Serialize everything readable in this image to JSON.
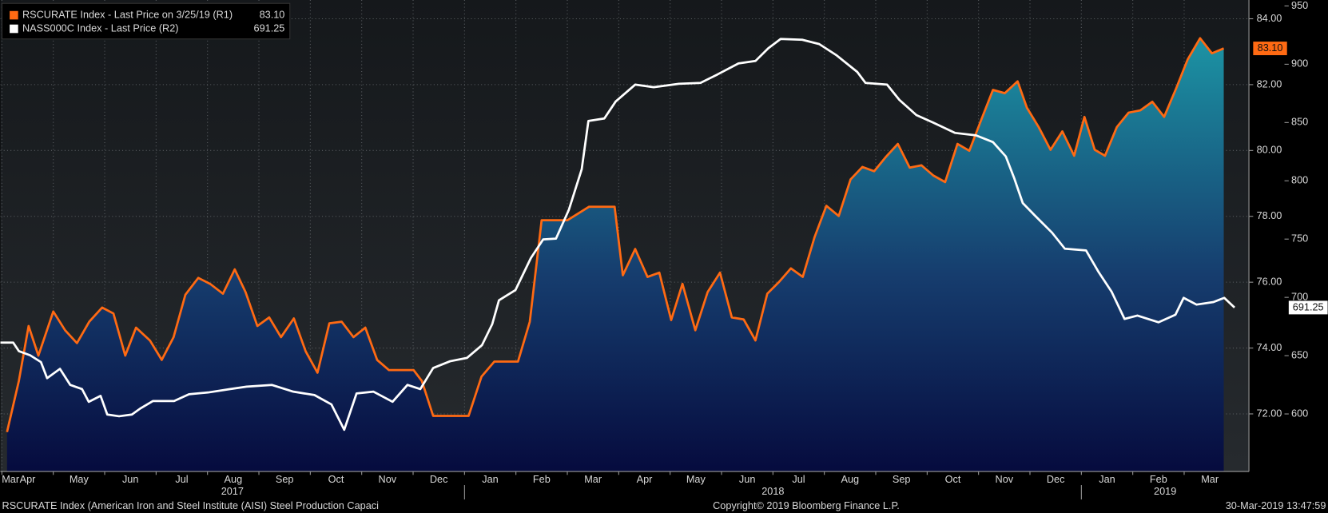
{
  "chart_data": {
    "type": "line",
    "xlim": [
      2.47,
      26.76
    ],
    "xticks": [
      {
        "value": 1.5,
        "label": "Mar"
      },
      {
        "value": 2.5,
        "label": "Apr"
      },
      {
        "value": 3.5,
        "label": "May"
      },
      {
        "value": 4.5,
        "label": "Jun"
      },
      {
        "value": 5.5,
        "label": "Jul"
      },
      {
        "value": 6.5,
        "label": "Aug"
      },
      {
        "value": 7.5,
        "label": "Sep"
      },
      {
        "value": 8.5,
        "label": "Oct"
      },
      {
        "value": 9.5,
        "label": "Nov"
      },
      {
        "value": 10.5,
        "label": "Dec"
      },
      {
        "value": 11.5,
        "label": "Jan"
      },
      {
        "value": 12.5,
        "label": "Feb"
      },
      {
        "value": 13.5,
        "label": "Mar"
      },
      {
        "value": 14.5,
        "label": "Apr"
      },
      {
        "value": 15.5,
        "label": "May"
      },
      {
        "value": 16.5,
        "label": "Jun"
      },
      {
        "value": 17.5,
        "label": "Jul"
      },
      {
        "value": 18.5,
        "label": "Aug"
      },
      {
        "value": 19.5,
        "label": "Sep"
      },
      {
        "value": 20.5,
        "label": "Oct"
      },
      {
        "value": 21.5,
        "label": "Nov"
      },
      {
        "value": 22.5,
        "label": "Dec"
      },
      {
        "value": 23.5,
        "label": "Jan"
      },
      {
        "value": 24.5,
        "label": "Feb"
      },
      {
        "value": 25.5,
        "label": "Mar"
      }
    ],
    "year_ticks": [
      {
        "value": 1.5,
        "label": "2017"
      },
      {
        "value": 11.5,
        "label": "2018"
      },
      {
        "value": 23.5,
        "label": "2019"
      }
    ],
    "ylim": [
      70.25,
      84.57
    ],
    "yticks": [
      {
        "value": 72,
        "label": "72.00"
      },
      {
        "value": 74,
        "label": "74.00"
      },
      {
        "value": 76,
        "label": "76.00"
      },
      {
        "value": 78,
        "label": "78.00"
      },
      {
        "value": 80,
        "label": "80.00"
      },
      {
        "value": 82,
        "label": "82.00"
      },
      {
        "value": 84,
        "label": "84.00"
      }
    ],
    "y2lim": [
      550.6,
      955.1
    ],
    "y2ticks": [
      600,
      650,
      700,
      750,
      800,
      850,
      900,
      950
    ],
    "grid": true,
    "series": [
      {
        "name": "RSCURATE Index - Last Price on 3/25/19 (R1)",
        "color": "#ff6a13",
        "axis": "y",
        "area": true,
        "last_label": "83.10",
        "x": [
          2.6,
          2.83,
          3.02,
          3.21,
          3.5,
          3.73,
          3.96,
          4.2,
          4.45,
          4.67,
          4.9,
          5.11,
          5.38,
          5.61,
          5.84,
          6.07,
          6.32,
          6.55,
          6.8,
          7.03,
          7.24,
          7.47,
          7.7,
          7.93,
          8.18,
          8.41,
          8.64,
          8.87,
          9.11,
          9.34,
          9.57,
          9.8,
          10.03,
          10.51,
          10.67,
          10.89,
          11.58,
          11.83,
          12.08,
          12.54,
          12.77,
          13.0,
          13.5,
          13.92,
          14.42,
          14.58,
          14.82,
          15.06,
          15.29,
          15.52,
          15.74,
          15.99,
          16.23,
          16.47,
          16.7,
          16.93,
          17.16,
          17.39,
          17.62,
          17.85,
          18.08,
          18.31,
          18.54,
          18.78,
          19.01,
          19.24,
          19.47,
          19.7,
          19.93,
          20.16,
          20.39,
          20.62,
          20.85,
          21.09,
          21.32,
          21.55,
          21.78,
          22.01,
          22.26,
          22.44,
          22.67,
          22.9,
          23.13,
          23.36,
          23.56,
          23.76,
          23.96,
          24.19,
          24.42,
          24.65,
          24.88,
          25.11,
          25.34,
          25.57,
          25.81,
          26.04,
          26.27
        ],
        "values": [
          71.45,
          73.0,
          74.67,
          73.77,
          75.11,
          74.54,
          74.15,
          74.8,
          75.23,
          75.05,
          73.77,
          74.62,
          74.23,
          73.64,
          74.33,
          75.62,
          76.13,
          75.95,
          75.65,
          76.39,
          75.7,
          74.67,
          74.93,
          74.33,
          74.9,
          73.9,
          73.25,
          74.75,
          74.8,
          74.33,
          74.62,
          73.64,
          73.33,
          73.33,
          73.0,
          71.94,
          71.94,
          73.13,
          73.59,
          73.59,
          74.8,
          77.88,
          77.88,
          78.29,
          78.29,
          76.21,
          77.01,
          76.16,
          76.29,
          74.85,
          75.95,
          74.54,
          75.7,
          76.29,
          74.93,
          74.87,
          74.23,
          75.65,
          76.01,
          76.42,
          76.16,
          77.37,
          78.32,
          78.01,
          79.12,
          79.5,
          79.37,
          79.81,
          80.2,
          79.48,
          79.55,
          79.24,
          79.04,
          80.2,
          79.99,
          80.92,
          81.84,
          81.74,
          82.1,
          81.3,
          80.71,
          80.02,
          80.58,
          79.84,
          81.02,
          80.02,
          79.84,
          80.71,
          81.15,
          81.22,
          81.48,
          81.02,
          81.87,
          82.77,
          83.41,
          82.95,
          83.1
        ]
      },
      {
        "name": "NASS000C Index - Last Price (R2)",
        "color": "#ffffff",
        "axis": "y2",
        "last_label": "691.25",
        "x": [
          2.47,
          2.72,
          2.83,
          3.05,
          3.26,
          3.38,
          3.63,
          3.83,
          4.06,
          4.19,
          4.42,
          4.55,
          4.78,
          5.03,
          5.19,
          5.44,
          5.85,
          6.14,
          6.51,
          6.93,
          7.26,
          7.75,
          8.17,
          8.58,
          8.91,
          9.16,
          9.4,
          9.73,
          10.1,
          10.39,
          10.64,
          10.89,
          11.22,
          11.55,
          11.84,
          12.04,
          12.17,
          12.49,
          12.79,
          13.03,
          13.28,
          13.53,
          13.78,
          13.91,
          14.22,
          14.44,
          14.82,
          15.18,
          15.67,
          16.09,
          16.42,
          16.83,
          17.16,
          17.41,
          17.65,
          18.07,
          18.4,
          18.73,
          19.14,
          19.3,
          19.72,
          19.96,
          20.29,
          20.62,
          21.04,
          21.45,
          21.78,
          22.03,
          22.19,
          22.36,
          22.6,
          22.93,
          23.18,
          23.59,
          23.84,
          24.09,
          24.34,
          24.59,
          25.0,
          25.33,
          25.49,
          25.74,
          26.07,
          26.28,
          26.48
        ],
        "values": [
          661.2,
          661.2,
          653.9,
          650.3,
          644.5,
          630.7,
          638.7,
          624.9,
          621.3,
          610.4,
          615.5,
          599.5,
          598.0,
          599.5,
          604.6,
          611.1,
          611.1,
          616.9,
          618.4,
          621.3,
          623.4,
          624.9,
          619.1,
          616.2,
          608.2,
          586.4,
          617.6,
          619.1,
          610.4,
          624.9,
          621.3,
          639.4,
          645.2,
          648.1,
          659.0,
          677.1,
          697.5,
          706.2,
          733.7,
          749.7,
          750.4,
          775.1,
          809.9,
          851.3,
          853.5,
          868.0,
          882.5,
          880.3,
          883.2,
          884.0,
          891.2,
          900.7,
          902.8,
          913.7,
          921.7,
          921.0,
          917.3,
          907.9,
          893.4,
          884.0,
          882.5,
          869.4,
          856.4,
          849.9,
          841.1,
          839.0,
          833.2,
          820.9,
          802.7,
          780.9,
          770.0,
          755.5,
          741.7,
          740.3,
          721.4,
          704.7,
          681.5,
          684.4,
          678.6,
          685.1,
          699.6,
          693.8,
          696.0,
          699.6,
          691.25
        ]
      }
    ],
    "footer_left": "RSCURATE Index (American Iron and Steel Institute (AISI) Steel Production Capaci",
    "copyright": "Copyright© 2019 Bloomberg Finance L.P.",
    "timestamp": "30-Mar-2019 13:47:59"
  }
}
